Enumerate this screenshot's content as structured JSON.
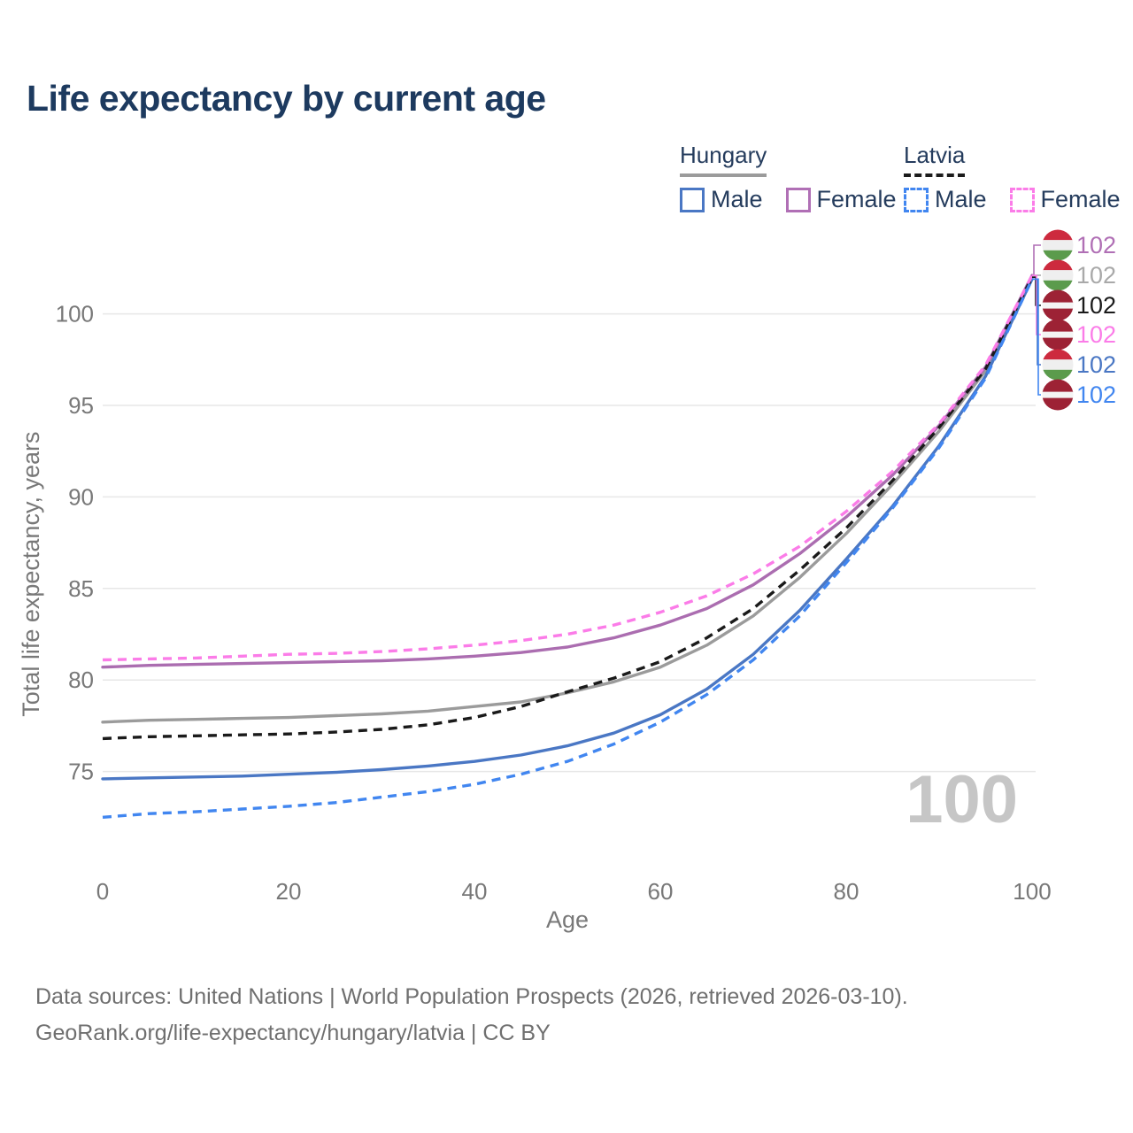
{
  "title": "Life expectancy by current age",
  "legend": {
    "groups": [
      {
        "name": "Hungary",
        "line_style": "solid",
        "line_color": "#9b9b9b",
        "items": [
          {
            "label": "Male",
            "color": "#4a77c4",
            "dashed": false
          },
          {
            "label": "Female",
            "color": "#b06fb5",
            "dashed": false
          }
        ]
      },
      {
        "name": "Latvia",
        "line_style": "dashed",
        "line_color": "#1c1c1c",
        "items": [
          {
            "label": "Male",
            "color": "#4186f0",
            "dashed": true
          },
          {
            "label": "Female",
            "color": "#fb7ce8",
            "dashed": true
          }
        ]
      }
    ]
  },
  "watermark": {
    "value": "100"
  },
  "footer": {
    "line1": "Data sources: United Nations | World Population Prospects (2026, retrieved 2026-03-10).",
    "line2": "GeoRank.org/life-expectancy/hungary/latvia | CC BY"
  },
  "chart_data": {
    "type": "line",
    "title": "Life expectancy by current age",
    "xlabel": "Age",
    "ylabel": "Total life expectancy, years",
    "xlim": [
      0,
      100
    ],
    "ylim": [
      70,
      103.5
    ],
    "xticks": [
      0,
      20,
      40,
      60,
      80,
      100
    ],
    "yticks": [
      75,
      80,
      85,
      90,
      95,
      100
    ],
    "grid": "horizontal",
    "legend_position": "top-right",
    "current_age_indicator": "100",
    "x": [
      0,
      5,
      10,
      15,
      20,
      25,
      30,
      35,
      40,
      45,
      50,
      55,
      60,
      65,
      70,
      75,
      80,
      85,
      90,
      95,
      100
    ],
    "series": [
      {
        "id": "hungary",
        "name": "Hungary",
        "country": "Hungary",
        "color": "#9b9b9b",
        "dash": false,
        "values": [
          77.7,
          77.8,
          77.85,
          77.9,
          77.95,
          78.05,
          78.15,
          78.3,
          78.55,
          78.8,
          79.3,
          79.9,
          80.7,
          81.9,
          83.5,
          85.6,
          88.0,
          90.7,
          93.6,
          96.9,
          102.0
        ]
      },
      {
        "id": "hungary-female",
        "name": "Hungary Female",
        "country": "Hungary",
        "color": "#ab6db0",
        "dash": false,
        "values": [
          80.7,
          80.8,
          80.85,
          80.9,
          80.95,
          81.0,
          81.05,
          81.15,
          81.3,
          81.5,
          81.8,
          82.3,
          83.0,
          83.9,
          85.2,
          86.9,
          88.9,
          91.2,
          93.9,
          97.1,
          102.1
        ]
      },
      {
        "id": "hungary-male",
        "name": "Hungary Male",
        "country": "Hungary",
        "color": "#4a77c4",
        "dash": false,
        "values": [
          74.6,
          74.65,
          74.7,
          74.75,
          74.85,
          74.95,
          75.1,
          75.3,
          75.55,
          75.9,
          76.4,
          77.1,
          78.1,
          79.5,
          81.4,
          83.8,
          86.6,
          89.5,
          92.8,
          96.6,
          101.9
        ]
      },
      {
        "id": "latvia",
        "name": "Latvia",
        "country": "Latvia",
        "color": "#1a1a1a",
        "dash": true,
        "values": [
          76.8,
          76.9,
          76.95,
          77.0,
          77.05,
          77.15,
          77.3,
          77.55,
          77.95,
          78.55,
          79.35,
          80.1,
          81.0,
          82.3,
          83.9,
          86.0,
          88.3,
          90.9,
          93.8,
          97.0,
          102.0
        ]
      },
      {
        "id": "latvia-female",
        "name": "Latvia Female",
        "country": "Latvia",
        "color": "#fb7ce8",
        "dash": true,
        "values": [
          81.1,
          81.15,
          81.2,
          81.3,
          81.4,
          81.45,
          81.55,
          81.7,
          81.9,
          82.15,
          82.5,
          83.0,
          83.7,
          84.6,
          85.8,
          87.3,
          89.2,
          91.4,
          94.0,
          97.2,
          102.1
        ]
      },
      {
        "id": "latvia-male",
        "name": "Latvia Male",
        "country": "Latvia",
        "color": "#4186f0",
        "dash": true,
        "values": [
          72.5,
          72.7,
          72.8,
          72.95,
          73.1,
          73.3,
          73.6,
          73.9,
          74.3,
          74.85,
          75.55,
          76.5,
          77.7,
          79.2,
          81.1,
          83.5,
          86.4,
          89.4,
          92.7,
          96.5,
          101.9
        ]
      }
    ],
    "end_labels": [
      {
        "series": "Hungary Female",
        "flag": "hungary",
        "color": "#b06fb5",
        "value": "102"
      },
      {
        "series": "Hungary",
        "flag": "hungary",
        "color": "#a9a9a9",
        "value": "102"
      },
      {
        "series": "Latvia",
        "flag": "latvia",
        "color": "#1a1a1a",
        "value": "102"
      },
      {
        "series": "Latvia Female",
        "flag": "latvia",
        "color": "#fb7ce8",
        "value": "102"
      },
      {
        "series": "Hungary Male",
        "flag": "hungary",
        "color": "#4a77c4",
        "value": "102"
      },
      {
        "series": "Latvia Male",
        "flag": "latvia",
        "color": "#4186f0",
        "value": "102"
      }
    ],
    "flag_colors": {
      "hungary": [
        "#cd2a3e",
        "#efefef",
        "#5b9b4c"
      ],
      "latvia": [
        "#9d2235",
        "#f4f4f4",
        "#9d2235"
      ]
    }
  }
}
